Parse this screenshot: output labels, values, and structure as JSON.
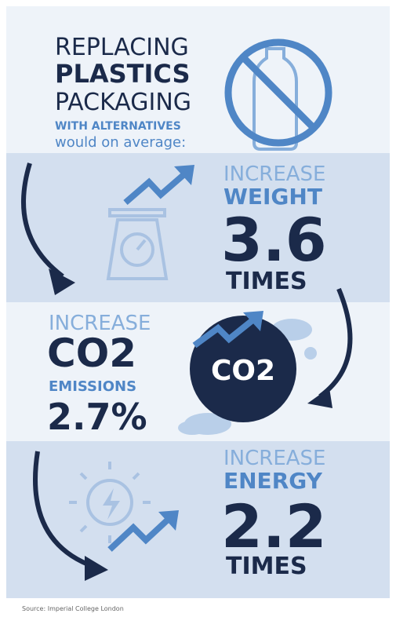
{
  "header": {
    "line1": "REPLACING",
    "line2": "PLASTICS",
    "line3": "PACKAGING",
    "line4": "WITH ALTERNATIVES",
    "line5": "would on average:"
  },
  "sections": [
    {
      "verb": "INCREASE",
      "metric": "WEIGHT",
      "figure": "3.6",
      "unit": "TIMES"
    },
    {
      "verb": "INCREASE",
      "metric": "CO2",
      "sub": "EMISSIONS",
      "figure": "2.7%",
      "icon_label": "CO2"
    },
    {
      "verb": "INCREASE",
      "metric": "ENERGY",
      "figure": "2.2",
      "unit": "TIMES"
    }
  ],
  "source": "Source: Imperial College London"
}
